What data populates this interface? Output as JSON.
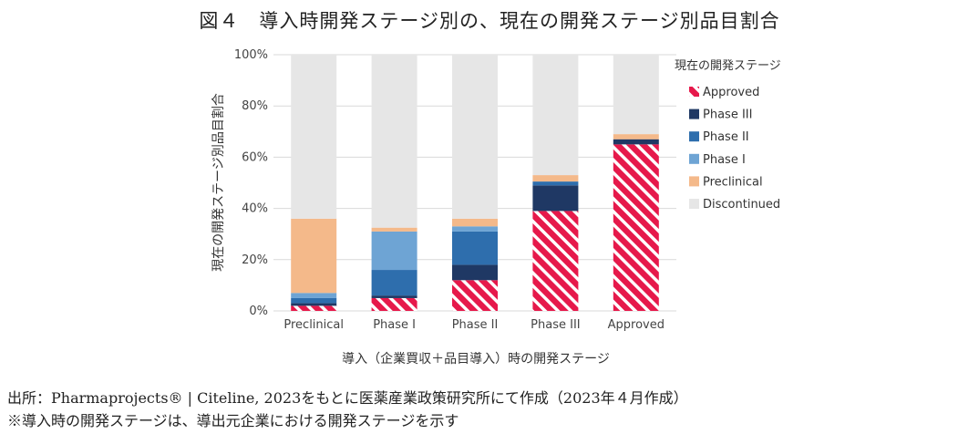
{
  "chart_data": {
    "type": "bar",
    "stacked": true,
    "title": "図４　導入時開発ステージ別の、現在の開発ステージ別品目割合",
    "xlabel": "導入（企業買収＋品目導入）時の開発ステージ",
    "ylabel": "現在の開発ステージ別品目割合",
    "ylim": [
      0,
      100
    ],
    "yticks": [
      "0%",
      "20%",
      "40%",
      "60%",
      "80%",
      "100%"
    ],
    "categories": [
      "Preclinical",
      "Phase I",
      "Phase II",
      "Phase III",
      "Approved"
    ],
    "legend_title": "現在の開発ステージ",
    "legend_position": "right",
    "series": [
      {
        "name": "Approved",
        "color": "#e6194b",
        "pattern": "hatched",
        "values": [
          2,
          5,
          12,
          39,
          65
        ]
      },
      {
        "name": "Phase III",
        "color": "#1f3864",
        "values": [
          1,
          1,
          6,
          10,
          2
        ]
      },
      {
        "name": "Phase II",
        "color": "#2e6ead",
        "values": [
          2,
          10,
          13,
          1.5,
          0
        ]
      },
      {
        "name": "Phase I",
        "color": "#6ea4d4",
        "values": [
          2,
          15,
          2,
          0,
          0
        ]
      },
      {
        "name": "Preclinical",
        "color": "#f4b98a",
        "values": [
          29,
          1.5,
          3,
          2.5,
          2
        ]
      },
      {
        "name": "Discontinued",
        "color": "#e6e6e6",
        "values": [
          64,
          67.5,
          64,
          47,
          31
        ]
      }
    ]
  },
  "source_note": "出所：Pharmaprojects® | Citeline, 2023をもとに医薬産業政策研究所にて作成（2023年４月作成）",
  "footnote": "※導入時の開発ステージは、導出元企業における開発ステージを示す"
}
